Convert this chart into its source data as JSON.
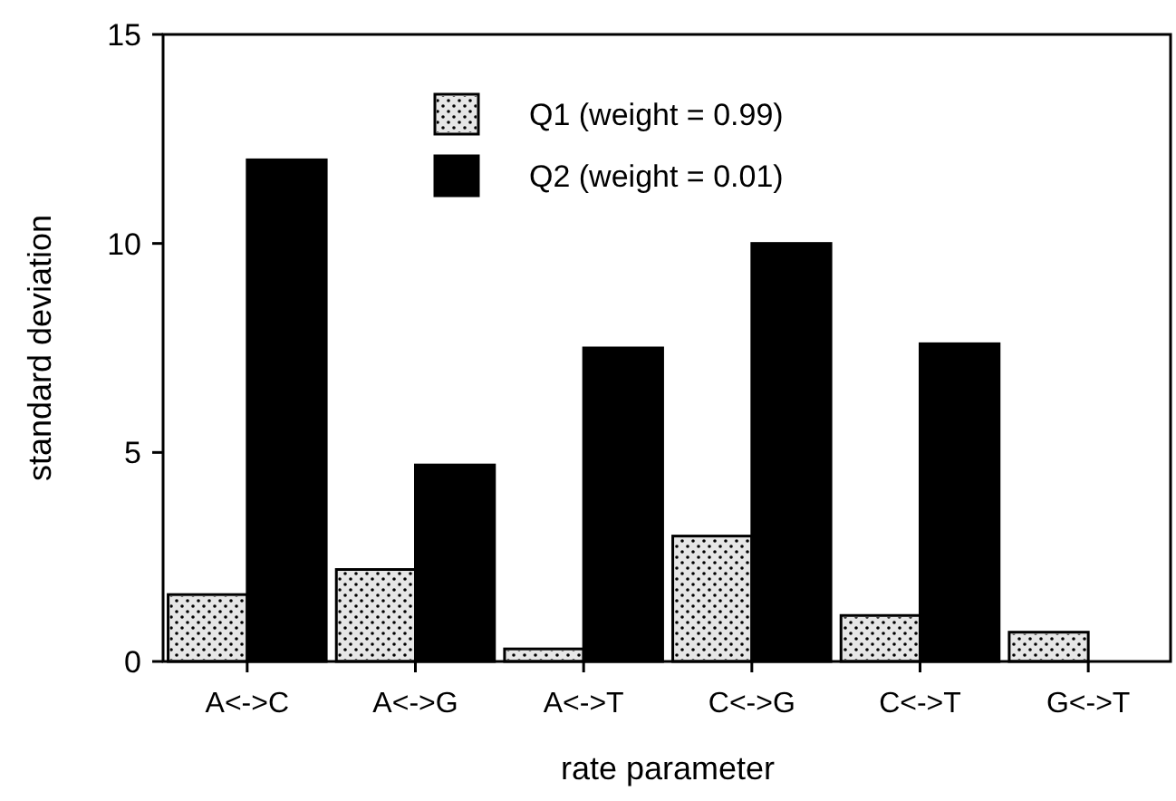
{
  "chart_data": {
    "type": "bar",
    "xlabel": "rate parameter",
    "ylabel": "standard deviation",
    "categories": [
      "A<->C",
      "A<->G",
      "A<->T",
      "C<->G",
      "C<->T",
      "G<->T"
    ],
    "series": [
      {
        "name": "Q1 (weight = 0.99)",
        "color": "#e6e6e6",
        "values": [
          1.6,
          2.2,
          0.3,
          3.0,
          1.1,
          0.7
        ]
      },
      {
        "name": "Q2 (weight = 0.01)",
        "color": "#000000",
        "values": [
          12.0,
          4.7,
          7.5,
          10.0,
          7.6,
          null
        ]
      }
    ],
    "ylim": [
      0,
      15
    ],
    "yticks": [
      0,
      5,
      10,
      15
    ],
    "grid": false,
    "legend": "top"
  }
}
